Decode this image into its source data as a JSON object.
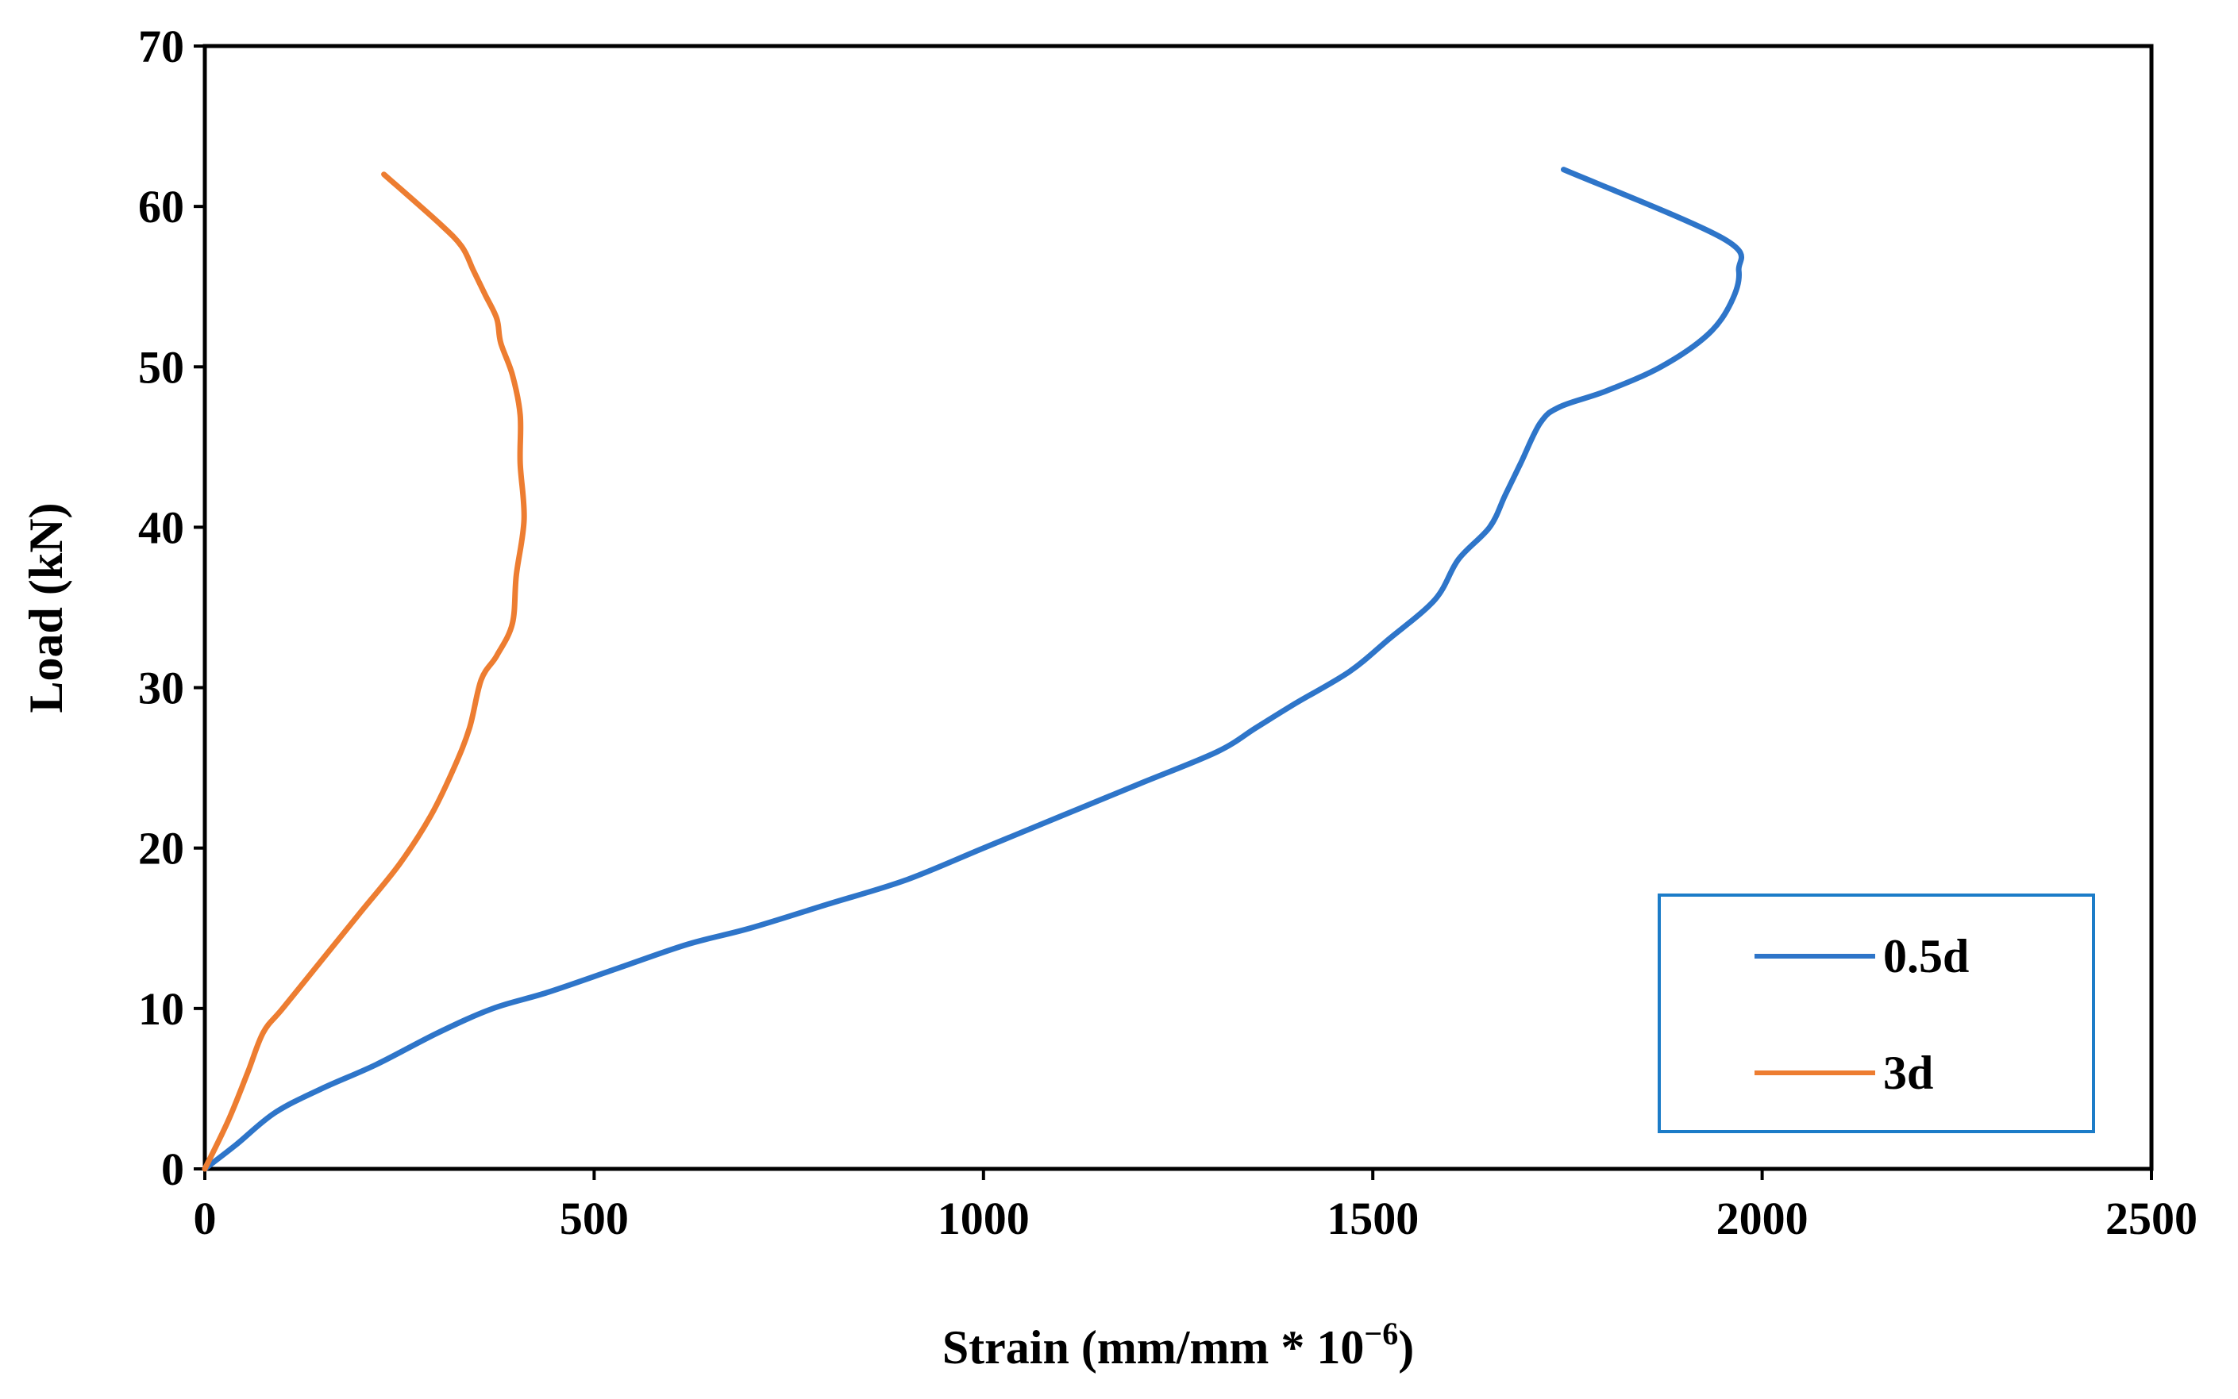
{
  "chart_data": {
    "type": "line",
    "title": "",
    "xlabel": "Strain (mm/mm * 10",
    "xlabel_exponent": "−6",
    "xlabel_close": ")",
    "ylabel": "Load (kN)",
    "xlim": [
      0,
      2500
    ],
    "ylim": [
      0,
      70
    ],
    "xticks": [
      "0",
      "500",
      "1000",
      "1500",
      "2000",
      "2500"
    ],
    "yticks": [
      "0",
      "10",
      "20",
      "30",
      "40",
      "50",
      "60",
      "70"
    ],
    "grid": false,
    "legend_position": "bottom-right",
    "series": [
      {
        "name": "0.5d",
        "color": "#2E75C9",
        "points": [
          [
            0,
            0
          ],
          [
            40,
            1.5
          ],
          [
            90,
            3.5
          ],
          [
            150,
            5
          ],
          [
            220,
            6.5
          ],
          [
            300,
            8.5
          ],
          [
            370,
            10
          ],
          [
            440,
            11
          ],
          [
            530,
            12.5
          ],
          [
            620,
            14
          ],
          [
            700,
            15
          ],
          [
            800,
            16.5
          ],
          [
            900,
            18
          ],
          [
            1000,
            20
          ],
          [
            1100,
            22
          ],
          [
            1200,
            24
          ],
          [
            1300,
            26
          ],
          [
            1350,
            27.5
          ],
          [
            1400,
            29
          ],
          [
            1470,
            31
          ],
          [
            1520,
            33
          ],
          [
            1580,
            35.5
          ],
          [
            1610,
            38
          ],
          [
            1650,
            40
          ],
          [
            1670,
            42
          ],
          [
            1690,
            44
          ],
          [
            1715,
            46.5
          ],
          [
            1740,
            47.5
          ],
          [
            1800,
            48.5
          ],
          [
            1870,
            50
          ],
          [
            1930,
            52
          ],
          [
            1960,
            54
          ],
          [
            1970,
            56
          ],
          [
            1950,
            58
          ],
          [
            1745,
            62.3
          ]
        ]
      },
      {
        "name": "3d",
        "color": "#ED7D31",
        "points": [
          [
            0,
            0
          ],
          [
            30,
            3
          ],
          [
            55,
            6
          ],
          [
            75,
            8.5
          ],
          [
            100,
            10
          ],
          [
            150,
            13
          ],
          [
            200,
            16
          ],
          [
            250,
            19
          ],
          [
            290,
            22
          ],
          [
            320,
            25
          ],
          [
            340,
            27.5
          ],
          [
            355,
            30.5
          ],
          [
            375,
            32
          ],
          [
            395,
            34
          ],
          [
            400,
            37
          ],
          [
            410,
            40.5
          ],
          [
            405,
            44
          ],
          [
            405,
            47
          ],
          [
            395,
            49.5
          ],
          [
            380,
            51.5
          ],
          [
            375,
            53
          ],
          [
            360,
            54.5
          ],
          [
            345,
            56
          ],
          [
            330,
            57.5
          ],
          [
            300,
            59
          ],
          [
            230,
            62
          ]
        ]
      }
    ]
  }
}
